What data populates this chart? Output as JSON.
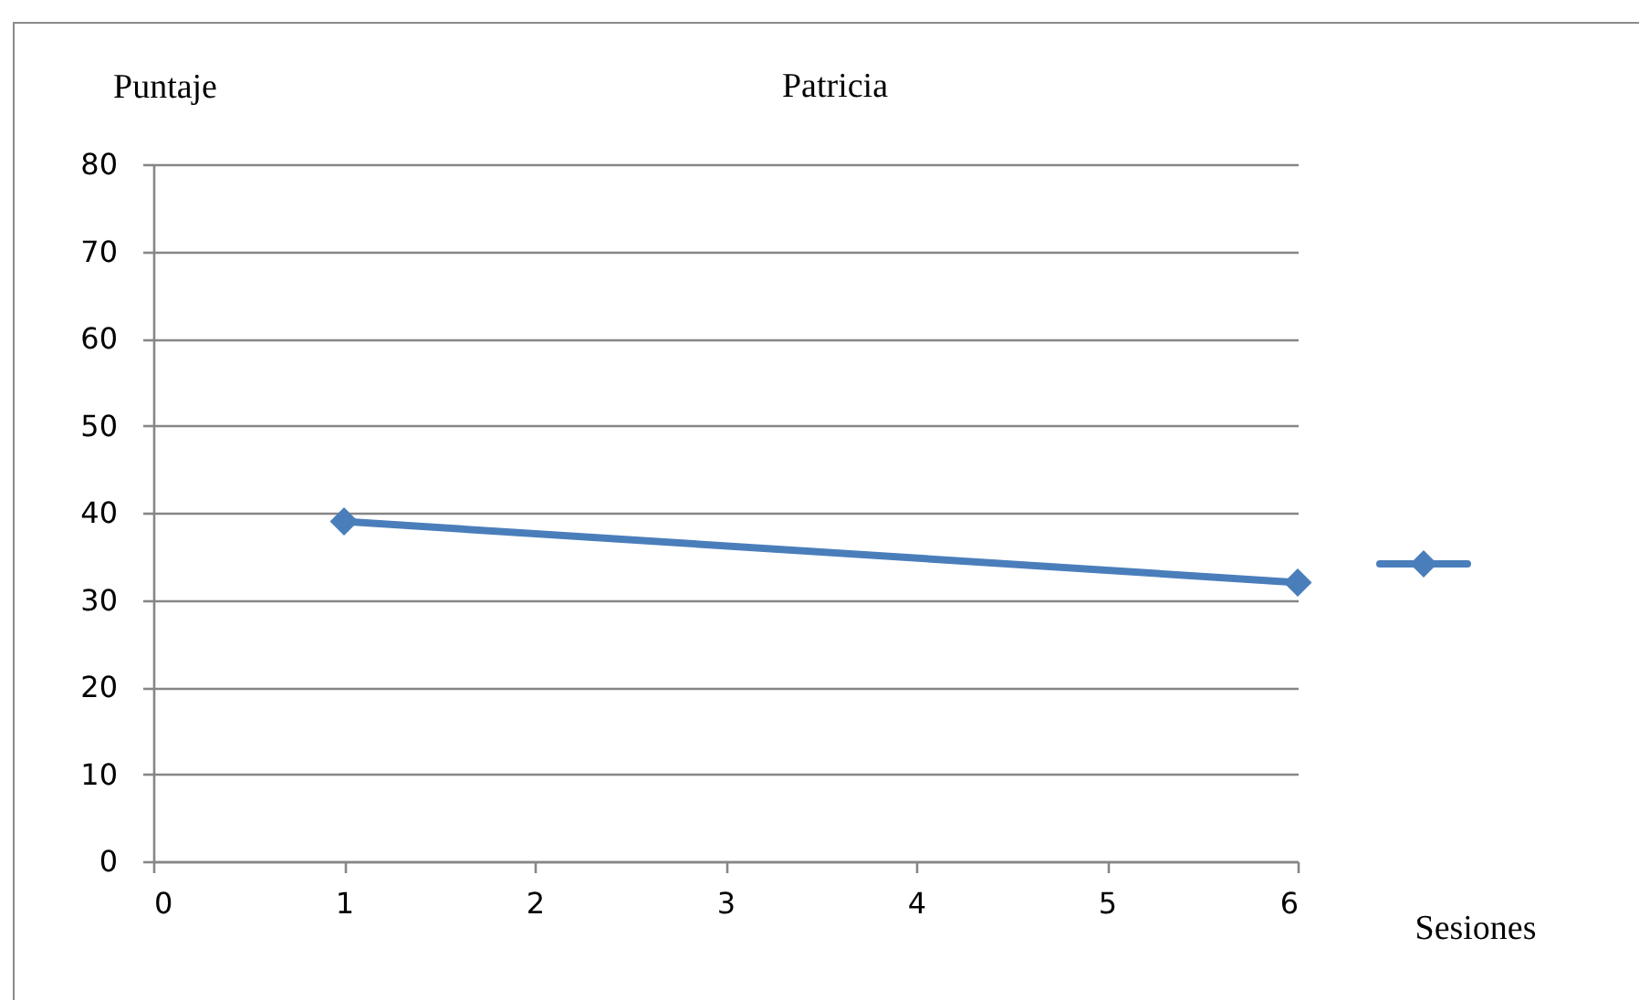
{
  "chart_data": {
    "type": "line",
    "title": "Patricia",
    "xlabel": "Sesiones",
    "ylabel": "Puntaje",
    "x": [
      1,
      6
    ],
    "series": [
      {
        "color": "#4a7ebb",
        "values": [
          39,
          32
        ]
      }
    ],
    "xlim": [
      0,
      6
    ],
    "xticks": [
      0,
      1,
      2,
      3,
      4,
      5,
      6
    ],
    "ylim": [
      0,
      80
    ],
    "yticks": [
      0,
      10,
      20,
      30,
      40,
      50,
      60,
      70,
      80
    ],
    "grid": "y",
    "marker": "diamond",
    "line_style": "solid"
  }
}
